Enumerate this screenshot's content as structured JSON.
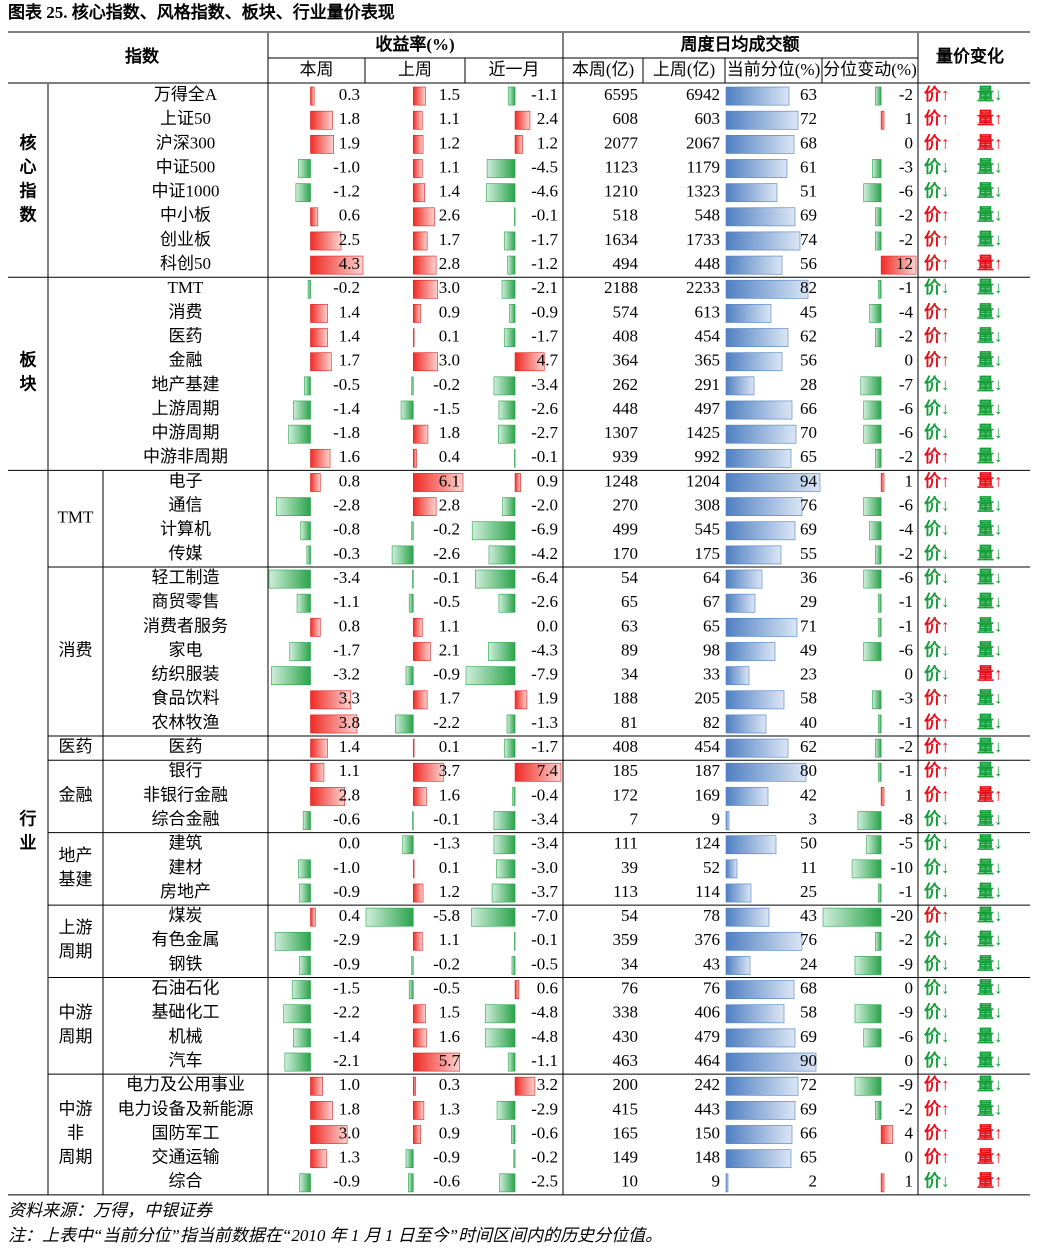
{
  "title": "图表 25. 核心指数、风格指数、板块、行业量价表现",
  "header": {
    "index": "指数",
    "returns": "收益率(%)",
    "returns_cols": [
      "本周",
      "上周",
      "近一月"
    ],
    "turnover": "周度日均成交额",
    "turnover_cols": [
      "本周(亿)",
      "上周(亿)",
      "当前分位(%)",
      "分位变动(%)"
    ],
    "pv": "量价变化"
  },
  "sections": [
    {
      "label": [
        "核",
        "心",
        "指",
        "数"
      ],
      "groups": [
        {
          "rows": [
            [
              "万得全A",
              "0.3",
              "1.5",
              "-1.1",
              6595,
              6942,
              63,
              -2,
              "价↑",
              "量↓"
            ],
            [
              "上证50",
              "1.8",
              "1.1",
              "2.4",
              608,
              603,
              72,
              1,
              "价↑",
              "量↑"
            ],
            [
              "沪深300",
              "1.9",
              "1.2",
              "1.2",
              2077,
              2067,
              68,
              0,
              "价↑",
              "量↑"
            ],
            [
              "中证500",
              "-1.0",
              "1.1",
              "-4.5",
              1123,
              1179,
              61,
              -3,
              "价↓",
              "量↓"
            ],
            [
              "中证1000",
              "-1.2",
              "1.4",
              "-4.6",
              1210,
              1323,
              51,
              -6,
              "价↓",
              "量↓"
            ],
            [
              "中小板",
              "0.6",
              "2.6",
              "-0.1",
              518,
              548,
              69,
              -2,
              "价↑",
              "量↓"
            ],
            [
              "创业板",
              "2.5",
              "1.7",
              "-1.7",
              1634,
              1733,
              74,
              -2,
              "价↑",
              "量↓"
            ],
            [
              "科创50",
              "4.3",
              "2.8",
              "-1.2",
              494,
              448,
              56,
              12,
              "价↑",
              "量↑"
            ]
          ]
        }
      ]
    },
    {
      "label": [
        "板",
        "块"
      ],
      "groups": [
        {
          "rows": [
            [
              "TMT",
              "-0.2",
              "3.0",
              "-2.1",
              2188,
              2233,
              82,
              -1,
              "价↓",
              "量↓"
            ],
            [
              "消费",
              "1.4",
              "0.9",
              "-0.9",
              574,
              613,
              45,
              -4,
              "价↑",
              "量↓"
            ],
            [
              "医药",
              "1.4",
              "0.1",
              "-1.7",
              408,
              454,
              62,
              -2,
              "价↑",
              "量↓"
            ],
            [
              "金融",
              "1.7",
              "3.0",
              "4.7",
              364,
              365,
              56,
              0,
              "价↑",
              "量↓"
            ],
            [
              "地产基建",
              "-0.5",
              "-0.2",
              "-3.4",
              262,
              291,
              28,
              -7,
              "价↓",
              "量↓"
            ],
            [
              "上游周期",
              "-1.4",
              "-1.5",
              "-2.6",
              448,
              497,
              66,
              -6,
              "价↓",
              "量↓"
            ],
            [
              "中游周期",
              "-1.8",
              "1.8",
              "-2.7",
              1307,
              1425,
              70,
              -6,
              "价↓",
              "量↓"
            ],
            [
              "中游非周期",
              "1.6",
              "0.4",
              "-0.1",
              939,
              992,
              65,
              -2,
              "价↑",
              "量↓"
            ]
          ]
        }
      ]
    },
    {
      "label": [
        "行",
        "业"
      ],
      "groups": [
        {
          "label": [
            "TMT"
          ],
          "rows": [
            [
              "电子",
              "0.8",
              "6.1",
              "0.9",
              1248,
              1204,
              94,
              1,
              "价↑",
              "量↑"
            ],
            [
              "通信",
              "-2.8",
              "2.8",
              "-2.0",
              270,
              308,
              76,
              -6,
              "价↓",
              "量↓"
            ],
            [
              "计算机",
              "-0.8",
              "-0.2",
              "-6.9",
              499,
              545,
              69,
              -4,
              "价↓",
              "量↓"
            ],
            [
              "传媒",
              "-0.3",
              "-2.6",
              "-4.2",
              170,
              175,
              55,
              -2,
              "价↓",
              "量↓"
            ]
          ]
        },
        {
          "label": [
            "消费"
          ],
          "rows": [
            [
              "轻工制造",
              "-3.4",
              "-0.1",
              "-6.4",
              54,
              64,
              36,
              -6,
              "价↓",
              "量↓"
            ],
            [
              "商贸零售",
              "-1.1",
              "-0.5",
              "-2.6",
              65,
              67,
              29,
              -1,
              "价↓",
              "量↓"
            ],
            [
              "消费者服务",
              "0.8",
              "1.1",
              "0.0",
              63,
              65,
              71,
              -1,
              "价↑",
              "量↓"
            ],
            [
              "家电",
              "-1.7",
              "2.1",
              "-4.3",
              89,
              98,
              49,
              -6,
              "价↓",
              "量↓"
            ],
            [
              "纺织服装",
              "-3.2",
              "-0.9",
              "-7.9",
              34,
              33,
              23,
              0,
              "价↓",
              "量↑"
            ],
            [
              "食品饮料",
              "3.3",
              "1.7",
              "1.9",
              188,
              205,
              58,
              -3,
              "价↑",
              "量↓"
            ],
            [
              "农林牧渔",
              "3.8",
              "-2.2",
              "-1.3",
              81,
              82,
              40,
              -1,
              "价↑",
              "量↓"
            ]
          ]
        },
        {
          "label": [
            "医药"
          ],
          "rows": [
            [
              "医药",
              "1.4",
              "0.1",
              "-1.7",
              408,
              454,
              62,
              -2,
              "价↑",
              "量↓"
            ]
          ]
        },
        {
          "label": [
            "金融"
          ],
          "rows": [
            [
              "银行",
              "1.1",
              "3.7",
              "7.4",
              185,
              187,
              80,
              -1,
              "价↑",
              "量↓"
            ],
            [
              "非银行金融",
              "2.8",
              "1.6",
              "-0.4",
              172,
              169,
              42,
              1,
              "价↑",
              "量↑"
            ],
            [
              "综合金融",
              "-0.6",
              "-0.1",
              "-3.4",
              7,
              9,
              3,
              -8,
              "价↓",
              "量↓"
            ]
          ]
        },
        {
          "label": [
            "地产",
            "基建"
          ],
          "rows": [
            [
              "建筑",
              "0.0",
              "-1.3",
              "-3.4",
              111,
              124,
              50,
              -5,
              "价↓",
              "量↓"
            ],
            [
              "建材",
              "-1.0",
              "0.1",
              "-3.0",
              39,
              52,
              11,
              -10,
              "价↓",
              "量↓"
            ],
            [
              "房地产",
              "-0.9",
              "1.2",
              "-3.7",
              113,
              114,
              25,
              -1,
              "价↓",
              "量↓"
            ]
          ]
        },
        {
          "label": [
            "上游",
            "周期"
          ],
          "rows": [
            [
              "煤炭",
              "0.4",
              "-5.8",
              "-7.0",
              54,
              78,
              43,
              -20,
              "价↑",
              "量↓"
            ],
            [
              "有色金属",
              "-2.9",
              "1.1",
              "-0.1",
              359,
              376,
              76,
              -2,
              "价↓",
              "量↓"
            ],
            [
              "钢铁",
              "-0.9",
              "-0.2",
              "-0.5",
              34,
              43,
              24,
              -9,
              "价↓",
              "量↓"
            ]
          ]
        },
        {
          "label": [
            "中游",
            "周期"
          ],
          "rows": [
            [
              "石油石化",
              "-1.5",
              "-0.5",
              "0.6",
              76,
              76,
              68,
              0,
              "价↓",
              "量↓"
            ],
            [
              "基础化工",
              "-2.2",
              "1.5",
              "-4.8",
              338,
              406,
              58,
              -9,
              "价↓",
              "量↓"
            ],
            [
              "机械",
              "-1.4",
              "1.6",
              "-4.8",
              430,
              479,
              69,
              -6,
              "价↓",
              "量↓"
            ],
            [
              "汽车",
              "-2.1",
              "5.7",
              "-1.1",
              463,
              464,
              90,
              0,
              "价↓",
              "量↓"
            ]
          ]
        },
        {
          "label": [
            "中游",
            "非",
            "周期"
          ],
          "rows": [
            [
              "电力及公用事业",
              "1.0",
              "0.3",
              "3.2",
              200,
              242,
              72,
              -9,
              "价↑",
              "量↓"
            ],
            [
              "电力设备及新能源",
              "1.8",
              "1.3",
              "-2.9",
              415,
              443,
              69,
              -2,
              "价↑",
              "量↓"
            ],
            [
              "国防军工",
              "3.0",
              "0.9",
              "-0.6",
              165,
              150,
              66,
              4,
              "价↑",
              "量↑"
            ],
            [
              "交通运输",
              "1.3",
              "-0.9",
              "-0.2",
              149,
              148,
              65,
              0,
              "价↑",
              "量↑"
            ],
            [
              "综合",
              "-0.9",
              "-0.6",
              "-2.5",
              10,
              9,
              2,
              1,
              "价↓",
              "量↑"
            ]
          ]
        }
      ]
    }
  ],
  "source": "资料来源：万得，中银证券",
  "note": "注：上表中“当前分位”指当前数据在“2010 年 1 月 1 日至今”时间区间内的历史分位值。"
}
